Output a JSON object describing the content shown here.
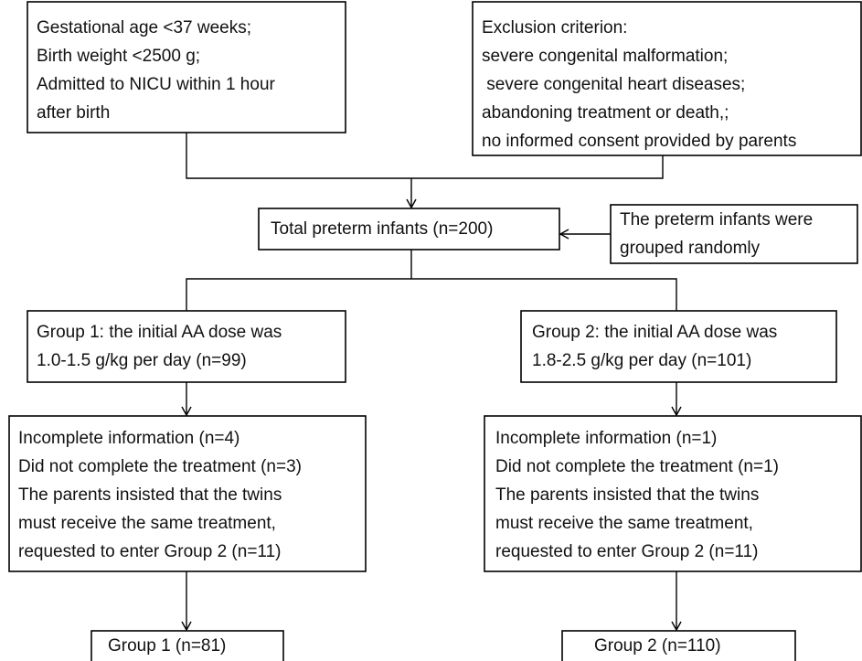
{
  "nodes": [
    {
      "lines": [
        "Gestational age <37 weeks;",
        "Birth weight <2500 g;",
        "Admitted to NICU within 1 hour",
        "after birth"
      ]
    },
    {
      "lines": [
        "Exclusion criterion:",
        "severe congenital malformation;",
        " severe congenital heart diseases;",
        "abandoning treatment or death,;",
        "no informed consent provided by parents"
      ]
    },
    {
      "lines": [
        "Total preterm infants (n=200)"
      ]
    },
    {
      "lines": [
        "The preterm infants were",
        "grouped randomly"
      ]
    },
    {
      "lines": [
        "Group 1: the initial AA dose was",
        "1.0-1.5 g/kg per day (n=99)"
      ]
    },
    {
      "lines": [
        "Group 2: the initial AA dose was",
        "1.8-2.5 g/kg per day (n=101)"
      ]
    },
    {
      "lines": [
        "Incomplete information (n=4)",
        "Did not complete the treatment (n=3)",
        "The parents insisted that the twins",
        "must receive the same treatment,",
        "requested to enter Group 2 (n=11)"
      ]
    },
    {
      "lines": [
        "Incomplete information (n=1)",
        "Did not complete the treatment (n=1)",
        "The parents insisted that the twins",
        "must receive the same treatment,",
        "requested to enter Group 2 (n=11)"
      ]
    },
    {
      "lines": [
        "Group 1 (n=81)"
      ]
    },
    {
      "lines": [
        "Group 2 (n=110)"
      ]
    }
  ]
}
